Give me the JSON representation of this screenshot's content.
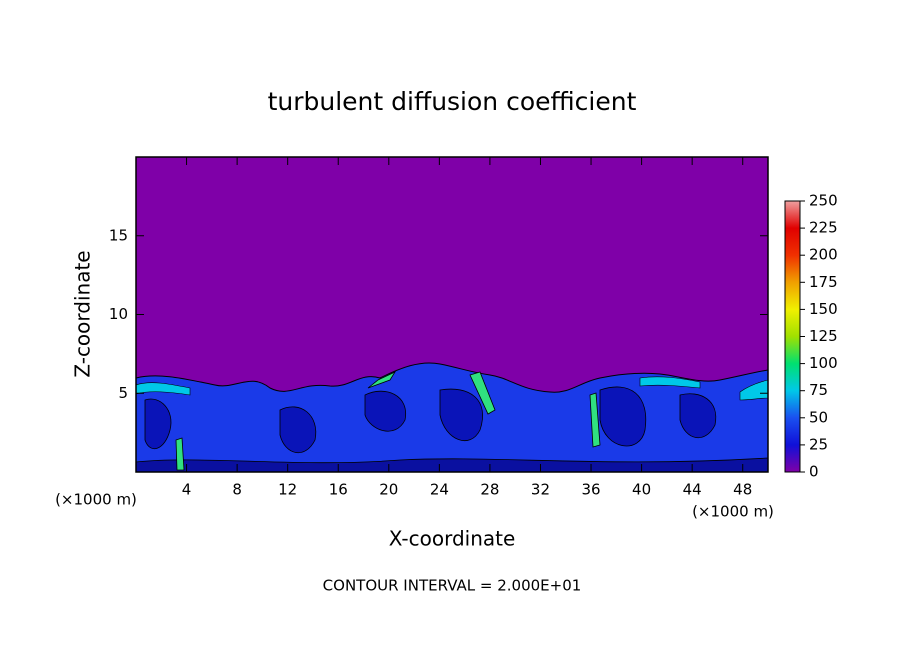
{
  "chart_data": {
    "type": "contour",
    "title": "turbulent diffusion coefficient",
    "x_label": "X-coordinate",
    "y_label": "Z-coordinate",
    "x_unit_labels": [
      "(×1000 m)",
      "(×1000 m)"
    ],
    "footnote": "CONTOUR INTERVAL = 2.000E+01",
    "xlim": [
      0,
      50
    ],
    "xticks": [
      4,
      8,
      12,
      16,
      20,
      24,
      28,
      32,
      36,
      40,
      44,
      48
    ],
    "ylim": [
      0,
      20
    ],
    "yticks": [
      5,
      10,
      15
    ],
    "colorbar": {
      "lim": [
        0,
        250
      ],
      "ticks": [
        0,
        25,
        50,
        75,
        100,
        125,
        150,
        175,
        200,
        225,
        250
      ],
      "colors": [
        "#7f00a8",
        "#1010d8",
        "#1a50f0",
        "#00c8e8",
        "#00e070",
        "#a0e000",
        "#f0f000",
        "#f0a000",
        "#f03000",
        "#e00000",
        "#f0a0a0"
      ]
    }
  }
}
